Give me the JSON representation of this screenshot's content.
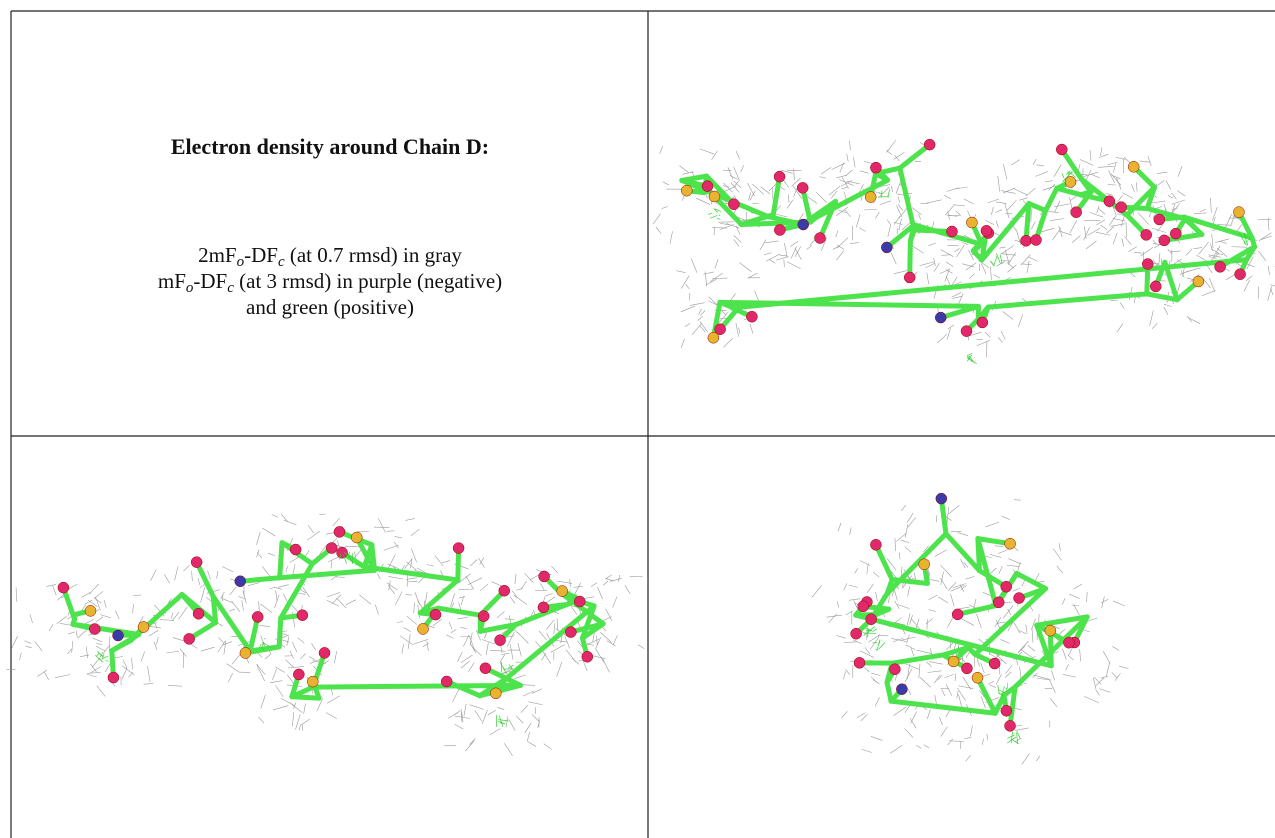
{
  "caption": {
    "title": "Electron density around Chain D:",
    "lines": [
      [
        "2mF",
        "o",
        "-DF",
        "c",
        " (at 0.7 rmsd) in gray"
      ],
      [
        "mF",
        "o",
        "-DF",
        "c",
        " (at 3 rmsd) in purple (negative)"
      ],
      [
        "and green (positive)"
      ]
    ]
  }
}
